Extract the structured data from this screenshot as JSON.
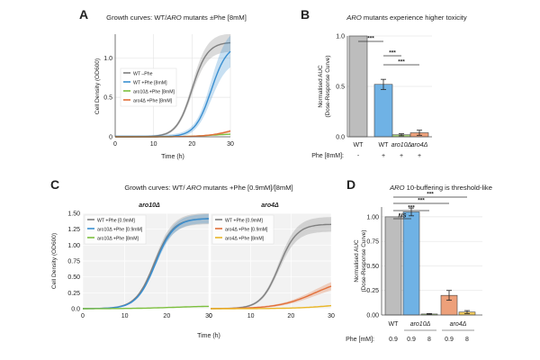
{
  "figure": {
    "bg": "#ffffff"
  },
  "colors": {
    "wt": "#7f7f7f",
    "blue": "#3a8fd1",
    "green": "#7cbf3e",
    "orange": "#e2703a",
    "yellow": "#e9b627",
    "bar_gray": "#bdbdbd",
    "bar_blue": "#6fb2e5",
    "bar_orange": "#eda07a",
    "bar_yellow": "#f1c95b",
    "dark": "#222222"
  },
  "panel_labels": {
    "A": "A",
    "B": "B",
    "C": "C",
    "D": "D"
  },
  "chart_data": [
    {
      "id": "A",
      "type": "line",
      "title": "Growth curves: WT/ARO mutants ±Phe [8mM]",
      "title_parts": {
        "pre": "Growth curves: WT/",
        "ital": "ARO",
        "post": " mutants ±Phe [8mM]"
      },
      "xlabel": "Time (h)",
      "ylabel": "Cell Density (OD600)",
      "xlim": [
        0,
        30
      ],
      "ylim": [
        0,
        1.3
      ],
      "xticks": [
        0,
        10,
        20,
        30
      ],
      "yticks": [
        0,
        0.5,
        1.0
      ],
      "ytick_labels": [
        "0",
        "0.5",
        "1.0"
      ],
      "legend": [
        {
          "label": "WT –Phe",
          "color": "#7f7f7f"
        },
        {
          "label": "WT +Phe [8mM]",
          "color": "#3a8fd1"
        },
        {
          "label": "aro10Δ +Phe [8mM]",
          "color": "#7cbf3e"
        },
        {
          "label": "aro4Δ +Phe [8mM]",
          "color": "#e2703a"
        }
      ],
      "series": [
        {
          "name": "WT –Phe",
          "color": "#7f7f7f",
          "K": 1.2,
          "r": 0.5,
          "t0": 20,
          "band": 0.08
        },
        {
          "name": "WT +Phe [8mM]",
          "color": "#3a8fd1",
          "K": 1.18,
          "r": 0.48,
          "t0": 25,
          "band": 0.15
        },
        {
          "name": "aro10Δ +Phe [8mM]",
          "color": "#7cbf3e",
          "K": 0.04,
          "r": 0.3,
          "t0": 25,
          "band": 0.005
        },
        {
          "name": "aro4Δ +Phe [8mM]",
          "color": "#e2703a",
          "K": 0.2,
          "r": 0.28,
          "t0": 32,
          "band": 0.03
        }
      ]
    },
    {
      "id": "B",
      "type": "bar",
      "title": "ARO mutants experience higher toxicity",
      "title_parts": {
        "pre": "",
        "ital": "ARO",
        "post": " mutants experience higher toxicity"
      },
      "ylabel": "Normalised AUC (Dose-Response Curve)",
      "ylabel_lines": [
        "Normalised AUC",
        "(Dose-Response Curve)"
      ],
      "ylim": [
        0,
        1.0
      ],
      "yticks": [
        0,
        0.5,
        1.0
      ],
      "ytick_labels": [
        "0.0",
        "0.5",
        "1.0"
      ],
      "categories": [
        "WT",
        "WT",
        "aro10Δ",
        "aro4Δ"
      ],
      "italic": [
        false,
        false,
        true,
        true
      ],
      "values": [
        1.0,
        0.52,
        0.02,
        0.04
      ],
      "errors": [
        0,
        0.05,
        0.01,
        0.025
      ],
      "colors": [
        "#bdbdbd",
        "#6fb2e5",
        "#a6d27a",
        "#eda07a"
      ],
      "row_label": "Phe [8mM]:",
      "row_values": [
        "-",
        "+",
        "+",
        "+"
      ],
      "significance": [
        {
          "from": 0,
          "to": 1,
          "label": "***"
        },
        {
          "from": 1,
          "to": 2,
          "label": "***"
        },
        {
          "from": 1,
          "to": 3,
          "label": "***"
        }
      ]
    },
    {
      "id": "C",
      "type": "line",
      "title": "Growth curves: WT/ARO mutants +Phe [0.9mM]/[8mM]",
      "title_parts": {
        "pre": "Growth curves: WT/",
        "ital": " ARO",
        "post": " mutants +Phe [0.9mM]/[8mM]"
      },
      "xlabel": "Time (h)",
      "ylabel": "Cell Density (OD600)",
      "subplots": [
        {
          "subtitle": "aro10Δ",
          "xlim": [
            0,
            30
          ],
          "ylim": [
            0,
            1.5
          ],
          "xticks": [
            0,
            10,
            20,
            30
          ],
          "yticks": [
            0,
            0.25,
            0.5,
            0.75,
            1.0,
            1.25,
            1.5
          ],
          "ytick_labels": [
            "0.0",
            "0.25",
            "0.50",
            "0.75",
            "1.00",
            "1.25",
            "1.50"
          ],
          "legend": [
            {
              "label": "WT +Phe [0.9mM]",
              "color": "#7f7f7f"
            },
            {
              "label": "aro10Δ +Phe [0.9mM]",
              "color": "#3a8fd1"
            },
            {
              "label": "aro10Δ +Phe [8mM]",
              "color": "#7cbf3e"
            }
          ],
          "series": [
            {
              "name": "WT +Phe [0.9mM]",
              "color": "#7f7f7f",
              "K": 1.42,
              "r": 0.45,
              "t0": 17,
              "band": 0.06
            },
            {
              "name": "aro10Δ +Phe [0.9mM]",
              "color": "#3a8fd1",
              "K": 1.42,
              "r": 0.45,
              "t0": 17.3,
              "band": 0.05
            },
            {
              "name": "aro10Δ +Phe [8mM]",
              "color": "#7cbf3e",
              "K": 0.045,
              "r": 0.2,
              "t0": 22,
              "band": 0.004
            }
          ]
        },
        {
          "subtitle": "aro4Δ",
          "xlim": [
            0,
            30
          ],
          "ylim": [
            0,
            1.5
          ],
          "xticks": [
            0,
            10,
            20,
            30
          ],
          "yticks": [
            0,
            0.25,
            0.5,
            0.75,
            1.0,
            1.25,
            1.5
          ],
          "legend": [
            {
              "label": "WT +Phe [0.9mM]",
              "color": "#7f7f7f"
            },
            {
              "label": "aro4Δ +Phe [0.9mM]",
              "color": "#e2703a"
            },
            {
              "label": "aro4Δ +Phe [8mM]",
              "color": "#e9b627"
            }
          ],
          "series": [
            {
              "name": "WT +Phe [0.9mM]",
              "color": "#7f7f7f",
              "K": 1.33,
              "r": 0.45,
              "t0": 17,
              "band": 0.08
            },
            {
              "name": "aro4Δ +Phe [0.9mM]",
              "color": "#e2703a",
              "K": 0.5,
              "r": 0.22,
              "t0": 26,
              "band": 0.06
            },
            {
              "name": "aro4Δ +Phe [8mM]",
              "color": "#e9b627",
              "K": 0.12,
              "r": 0.2,
              "t0": 32,
              "band": 0.012
            }
          ]
        }
      ]
    },
    {
      "id": "D",
      "type": "bar",
      "title": "ARO 10-buffering is threshold-like",
      "title_parts": {
        "pre": "",
        "ital": "ARO",
        "post": " 10-buffering is threshold-like"
      },
      "ylabel": "Normalised AUC (Dose-Response Curve)",
      "ylabel_lines": [
        "Normalised AUC",
        "(Dose-Response Curve)"
      ],
      "ylim": [
        0,
        1.1
      ],
      "yticks": [
        0,
        0.25,
        0.5,
        0.75,
        1.0
      ],
      "ytick_labels": [
        "0.00",
        "0.25",
        "0.50",
        "0.75",
        "1.00"
      ],
      "values": [
        1.0,
        1.05,
        0.01,
        0.2,
        0.03
      ],
      "errors": [
        0,
        0.04,
        0.005,
        0.05,
        0.015
      ],
      "colors": [
        "#bdbdbd",
        "#6fb2e5",
        "#a6d27a",
        "#eda07a",
        "#f1c95b"
      ],
      "groups": [
        {
          "label": "WT",
          "italic": false,
          "bars": [
            0
          ]
        },
        {
          "label": "aro10Δ",
          "italic": true,
          "bars": [
            1,
            2
          ]
        },
        {
          "label": "aro4Δ",
          "italic": true,
          "bars": [
            3,
            4
          ]
        }
      ],
      "row_label": "Phe [mM]:",
      "row_values": [
        "0.9",
        "0.9",
        "8",
        "0.9",
        "8"
      ],
      "significance": [
        {
          "from": 0,
          "to": 1,
          "label": "NS"
        },
        {
          "from": 0,
          "to": 2,
          "label": "***"
        },
        {
          "from": 0,
          "to": 3,
          "label": "***"
        },
        {
          "from": 0,
          "to": 4,
          "label": "***"
        }
      ]
    }
  ]
}
